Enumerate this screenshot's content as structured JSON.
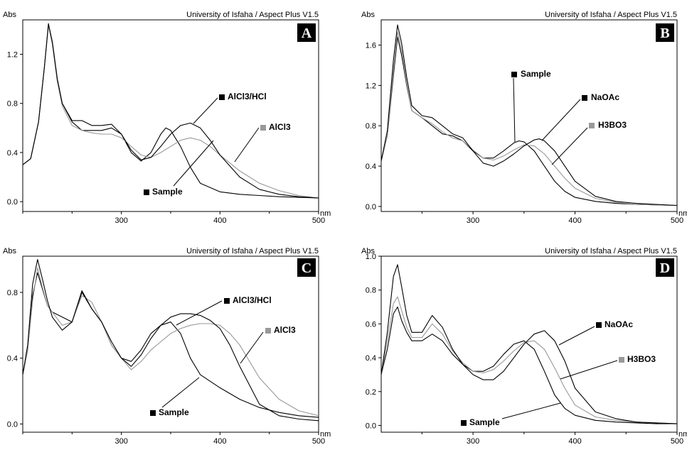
{
  "chart_data": [
    {
      "type": "line",
      "panel_label": "A",
      "yaxis_label": "Abs",
      "xunit": "nm",
      "header": "University of Isfaha / Aspect Plus V1.5",
      "xlim": [
        200,
        500
      ],
      "ylim": [
        -0.08,
        1.48
      ],
      "xticks": [
        300,
        400,
        500
      ],
      "yticks": [
        0.0,
        0.4,
        0.8,
        1.2
      ],
      "ytick_labels": [
        "0.0",
        "0.4",
        "0.8",
        "1.2"
      ],
      "series": [
        {
          "name": "Sample",
          "color": "#000000",
          "x": [
            200,
            208,
            216,
            222,
            226,
            230,
            235,
            240,
            250,
            260,
            270,
            280,
            290,
            300,
            310,
            320,
            330,
            340,
            345,
            350,
            360,
            370,
            380,
            400,
            420,
            440,
            460,
            480,
            500
          ],
          "y": [
            0.3,
            0.35,
            0.65,
            1.1,
            1.44,
            1.3,
            1.0,
            0.8,
            0.65,
            0.58,
            0.58,
            0.58,
            0.6,
            0.55,
            0.4,
            0.33,
            0.4,
            0.55,
            0.6,
            0.58,
            0.45,
            0.28,
            0.15,
            0.08,
            0.06,
            0.05,
            0.04,
            0.035,
            0.03
          ]
        },
        {
          "name": "AlCl3",
          "color": "#999999",
          "x": [
            200,
            208,
            216,
            222,
            226,
            230,
            235,
            240,
            250,
            260,
            270,
            280,
            290,
            300,
            310,
            320,
            330,
            340,
            350,
            360,
            370,
            380,
            390,
            400,
            420,
            440,
            460,
            480,
            500
          ],
          "y": [
            0.3,
            0.35,
            0.65,
            1.1,
            1.43,
            1.28,
            0.98,
            0.78,
            0.62,
            0.58,
            0.56,
            0.55,
            0.55,
            0.52,
            0.45,
            0.38,
            0.36,
            0.4,
            0.45,
            0.5,
            0.52,
            0.5,
            0.45,
            0.38,
            0.25,
            0.15,
            0.09,
            0.05,
            0.03
          ]
        },
        {
          "name": "AlCl3/HCl",
          "color": "#000000",
          "x": [
            200,
            208,
            216,
            222,
            226,
            230,
            235,
            240,
            250,
            260,
            270,
            280,
            290,
            300,
            310,
            320,
            330,
            340,
            350,
            360,
            370,
            380,
            390,
            400,
            420,
            440,
            460,
            480,
            500
          ],
          "y": [
            0.3,
            0.35,
            0.65,
            1.1,
            1.45,
            1.3,
            1.0,
            0.8,
            0.66,
            0.66,
            0.62,
            0.62,
            0.63,
            0.55,
            0.42,
            0.34,
            0.36,
            0.45,
            0.55,
            0.62,
            0.64,
            0.6,
            0.5,
            0.38,
            0.2,
            0.1,
            0.06,
            0.04,
            0.03
          ]
        }
      ],
      "legend": [
        {
          "label": "AlCl3/HCl",
          "color": "#000000"
        },
        {
          "label": "AlCl3",
          "color": "#999999"
        },
        {
          "label": "Sample",
          "color": "#000000"
        }
      ]
    },
    {
      "type": "line",
      "panel_label": "B",
      "yaxis_label": "Abs",
      "xunit": "nm",
      "header": "University of Isfaha / Aspect Plus V1.5",
      "xlim": [
        210,
        500
      ],
      "ylim": [
        -0.05,
        1.85
      ],
      "xticks": [
        300,
        400,
        500
      ],
      "yticks": [
        0.0,
        0.4,
        0.8,
        1.2,
        1.6
      ],
      "ytick_labels": [
        "0.0",
        "0.4",
        "0.8",
        "1.2",
        "1.6"
      ],
      "series": [
        {
          "name": "Sample",
          "color": "#000000",
          "x": [
            210,
            216,
            222,
            226,
            230,
            235,
            240,
            250,
            260,
            270,
            280,
            290,
            300,
            310,
            320,
            330,
            340,
            345,
            350,
            360,
            370,
            380,
            390,
            400,
            420,
            440,
            460,
            480,
            500
          ],
          "y": [
            0.45,
            0.7,
            1.3,
            1.68,
            1.5,
            1.2,
            0.95,
            0.88,
            0.8,
            0.72,
            0.7,
            0.65,
            0.55,
            0.48,
            0.48,
            0.55,
            0.63,
            0.65,
            0.64,
            0.55,
            0.4,
            0.25,
            0.15,
            0.09,
            0.05,
            0.03,
            0.02,
            0.015,
            0.01
          ]
        },
        {
          "name": "H3BO3",
          "color": "#999999",
          "x": [
            210,
            216,
            222,
            226,
            230,
            235,
            240,
            250,
            260,
            270,
            280,
            290,
            300,
            310,
            320,
            330,
            340,
            350,
            360,
            370,
            380,
            390,
            400,
            420,
            440,
            460,
            480,
            500
          ],
          "y": [
            0.45,
            0.7,
            1.35,
            1.73,
            1.55,
            1.22,
            0.95,
            0.88,
            0.82,
            0.74,
            0.68,
            0.65,
            0.56,
            0.48,
            0.46,
            0.5,
            0.56,
            0.61,
            0.6,
            0.52,
            0.4,
            0.28,
            0.18,
            0.08,
            0.04,
            0.02,
            0.015,
            0.01
          ]
        },
        {
          "name": "NaOAc",
          "color": "#000000",
          "x": [
            210,
            216,
            222,
            226,
            230,
            235,
            240,
            250,
            260,
            270,
            280,
            290,
            300,
            310,
            320,
            330,
            340,
            350,
            360,
            365,
            370,
            380,
            390,
            400,
            420,
            440,
            460,
            480,
            500
          ],
          "y": [
            0.45,
            0.75,
            1.45,
            1.8,
            1.62,
            1.28,
            1.0,
            0.9,
            0.88,
            0.8,
            0.72,
            0.68,
            0.55,
            0.43,
            0.4,
            0.45,
            0.52,
            0.6,
            0.66,
            0.67,
            0.65,
            0.55,
            0.4,
            0.25,
            0.1,
            0.05,
            0.03,
            0.02,
            0.01
          ]
        }
      ],
      "legend": [
        {
          "label": "Sample",
          "color": "#000000"
        },
        {
          "label": "NaOAc",
          "color": "#000000"
        },
        {
          "label": "H3BO3",
          "color": "#999999"
        }
      ]
    },
    {
      "type": "line",
      "panel_label": "C",
      "yaxis_label": "Abs",
      "xunit": "nm",
      "header": "University of Isfaha / Aspect Plus V1.5",
      "xlim": [
        200,
        500
      ],
      "ylim": [
        -0.05,
        1.02
      ],
      "xticks": [
        300,
        400,
        500
      ],
      "yticks": [
        0.0,
        0.4,
        0.8
      ],
      "ytick_labels": [
        "0.0",
        "0.4",
        "0.8"
      ],
      "series": [
        {
          "name": "Sample",
          "color": "#000000",
          "x": [
            200,
            205,
            210,
            215,
            220,
            225,
            230,
            240,
            250,
            260,
            270,
            280,
            290,
            300,
            310,
            320,
            330,
            340,
            350,
            360,
            370,
            380,
            400,
            420,
            440,
            460,
            480,
            500
          ],
          "y": [
            0.3,
            0.45,
            0.78,
            0.92,
            0.82,
            0.72,
            0.68,
            0.65,
            0.62,
            0.8,
            0.7,
            0.62,
            0.48,
            0.4,
            0.38,
            0.45,
            0.55,
            0.6,
            0.62,
            0.55,
            0.4,
            0.3,
            0.22,
            0.15,
            0.1,
            0.07,
            0.05,
            0.04
          ]
        },
        {
          "name": "AlCl3",
          "color": "#999999",
          "x": [
            200,
            205,
            210,
            215,
            220,
            225,
            230,
            240,
            250,
            260,
            270,
            280,
            290,
            300,
            310,
            320,
            330,
            340,
            350,
            360,
            370,
            380,
            390,
            400,
            410,
            420,
            440,
            460,
            480,
            500
          ],
          "y": [
            0.3,
            0.45,
            0.75,
            0.95,
            0.83,
            0.72,
            0.68,
            0.6,
            0.62,
            0.78,
            0.74,
            0.62,
            0.48,
            0.4,
            0.33,
            0.38,
            0.45,
            0.5,
            0.55,
            0.58,
            0.6,
            0.61,
            0.61,
            0.6,
            0.55,
            0.48,
            0.28,
            0.15,
            0.08,
            0.05
          ]
        },
        {
          "name": "AlCl3/HCl",
          "color": "#000000",
          "x": [
            200,
            205,
            210,
            215,
            220,
            225,
            230,
            240,
            250,
            260,
            270,
            280,
            290,
            300,
            310,
            320,
            330,
            340,
            350,
            360,
            370,
            380,
            390,
            400,
            410,
            420,
            440,
            460,
            480,
            500
          ],
          "y": [
            0.3,
            0.48,
            0.85,
            1.0,
            0.88,
            0.75,
            0.65,
            0.57,
            0.62,
            0.81,
            0.7,
            0.62,
            0.5,
            0.4,
            0.35,
            0.42,
            0.52,
            0.6,
            0.65,
            0.67,
            0.67,
            0.66,
            0.63,
            0.58,
            0.48,
            0.35,
            0.12,
            0.05,
            0.03,
            0.02
          ]
        }
      ],
      "legend": [
        {
          "label": "AlCl3/HCl",
          "color": "#000000"
        },
        {
          "label": "AlCl3",
          "color": "#999999"
        },
        {
          "label": "Sample",
          "color": "#000000"
        }
      ]
    },
    {
      "type": "line",
      "panel_label": "D",
      "yaxis_label": "Abs",
      "xunit": "nm",
      "header": "University of Isfaha / Aspect Plus V1.5",
      "xlim": [
        210,
        500
      ],
      "ylim": [
        -0.04,
        1.0
      ],
      "xticks": [
        300,
        400,
        500
      ],
      "yticks": [
        0.0,
        0.2,
        0.4,
        0.6,
        0.8,
        1.0
      ],
      "ytick_labels": [
        "0.0",
        "0.2",
        "0.4",
        "0.6",
        "0.8",
        "1.0"
      ],
      "series": [
        {
          "name": "Sample",
          "color": "#000000",
          "x": [
            210,
            216,
            222,
            226,
            230,
            235,
            240,
            250,
            260,
            270,
            280,
            290,
            300,
            310,
            320,
            330,
            340,
            350,
            360,
            370,
            380,
            390,
            400,
            420,
            440,
            460,
            480,
            500
          ],
          "y": [
            0.3,
            0.45,
            0.66,
            0.7,
            0.62,
            0.55,
            0.5,
            0.5,
            0.54,
            0.5,
            0.42,
            0.36,
            0.32,
            0.32,
            0.35,
            0.42,
            0.48,
            0.5,
            0.45,
            0.32,
            0.18,
            0.1,
            0.06,
            0.03,
            0.02,
            0.015,
            0.01,
            0.01
          ]
        },
        {
          "name": "H3BO3",
          "color": "#999999",
          "x": [
            210,
            216,
            222,
            226,
            230,
            235,
            240,
            250,
            260,
            270,
            280,
            290,
            300,
            310,
            320,
            330,
            340,
            350,
            360,
            370,
            380,
            390,
            400,
            420,
            440,
            460,
            480,
            500
          ],
          "y": [
            0.3,
            0.5,
            0.72,
            0.76,
            0.68,
            0.58,
            0.52,
            0.52,
            0.6,
            0.54,
            0.44,
            0.37,
            0.32,
            0.31,
            0.33,
            0.38,
            0.44,
            0.49,
            0.5,
            0.45,
            0.34,
            0.22,
            0.12,
            0.05,
            0.03,
            0.02,
            0.015,
            0.01
          ]
        },
        {
          "name": "NaOAc",
          "color": "#000000",
          "x": [
            210,
            216,
            222,
            226,
            230,
            235,
            240,
            250,
            260,
            270,
            280,
            290,
            300,
            310,
            320,
            330,
            340,
            350,
            360,
            370,
            380,
            390,
            400,
            420,
            440,
            460,
            480,
            500
          ],
          "y": [
            0.3,
            0.55,
            0.88,
            0.95,
            0.82,
            0.65,
            0.55,
            0.55,
            0.65,
            0.58,
            0.45,
            0.36,
            0.3,
            0.27,
            0.27,
            0.32,
            0.4,
            0.48,
            0.54,
            0.56,
            0.5,
            0.38,
            0.22,
            0.08,
            0.04,
            0.02,
            0.015,
            0.01
          ]
        }
      ],
      "legend": [
        {
          "label": "NaOAc",
          "color": "#000000"
        },
        {
          "label": "H3BO3",
          "color": "#999999"
        },
        {
          "label": "Sample",
          "color": "#000000"
        }
      ]
    }
  ]
}
